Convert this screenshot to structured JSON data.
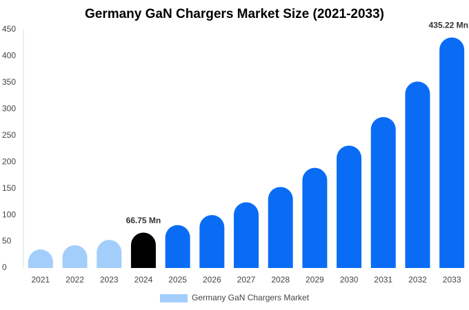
{
  "chart_data": {
    "type": "bar",
    "title": "Germany GaN Chargers Market Size (2021-2033)",
    "categories": [
      "2021",
      "2022",
      "2023",
      "2024",
      "2025",
      "2026",
      "2027",
      "2028",
      "2029",
      "2030",
      "2031",
      "2032",
      "2033"
    ],
    "series": [
      {
        "name": "Germany GaN Chargers Market",
        "color": "#a3cdfb",
        "colors": [
          "#a3cdfb",
          "#a3cdfb",
          "#a3cdfb",
          "#000000",
          "#0a6cf5",
          "#0a6cf5",
          "#0a6cf5",
          "#0a6cf5",
          "#0a6cf5",
          "#0a6cf5",
          "#0a6cf5",
          "#0a6cf5",
          "#0a6cf5"
        ],
        "values": [
          35,
          43,
          53,
          66.75,
          81,
          100,
          124,
          153,
          189,
          231,
          285,
          352,
          435.22
        ],
        "value_labels": [
          null,
          null,
          null,
          "66.75 Mn",
          null,
          null,
          null,
          null,
          null,
          null,
          null,
          null,
          "435.22 Mn"
        ]
      }
    ],
    "ylim": [
      0,
      450
    ],
    "yticks": [
      0,
      50,
      100,
      150,
      200,
      250,
      300,
      350,
      400,
      450
    ],
    "grid": false,
    "legend": "bottom"
  }
}
